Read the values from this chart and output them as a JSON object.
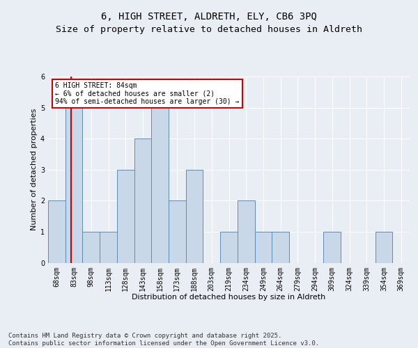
{
  "title_line1": "6, HIGH STREET, ALDRETH, ELY, CB6 3PQ",
  "title_line2": "Size of property relative to detached houses in Aldreth",
  "xlabel": "Distribution of detached houses by size in Aldreth",
  "ylabel": "Number of detached properties",
  "categories": [
    "68sqm",
    "83sqm",
    "98sqm",
    "113sqm",
    "128sqm",
    "143sqm",
    "158sqm",
    "173sqm",
    "188sqm",
    "203sqm",
    "219sqm",
    "234sqm",
    "249sqm",
    "264sqm",
    "279sqm",
    "294sqm",
    "309sqm",
    "324sqm",
    "339sqm",
    "354sqm",
    "369sqm"
  ],
  "values": [
    2,
    5,
    1,
    1,
    3,
    4,
    5,
    2,
    3,
    0,
    1,
    2,
    1,
    1,
    0,
    0,
    1,
    0,
    0,
    1,
    0
  ],
  "bar_color": "#c8d8e8",
  "bar_edge_color": "#5b8db8",
  "red_line_x": 0.85,
  "annotation_text": "6 HIGH STREET: 84sqm\n← 6% of detached houses are smaller (2)\n94% of semi-detached houses are larger (30) →",
  "annotation_box_color": "#ffffff",
  "annotation_box_edge": "#cc0000",
  "ylim": [
    0,
    6
  ],
  "yticks": [
    0,
    1,
    2,
    3,
    4,
    5,
    6
  ],
  "footer": "Contains HM Land Registry data © Crown copyright and database right 2025.\nContains public sector information licensed under the Open Government Licence v3.0.",
  "bg_color": "#e8eef4",
  "plot_bg_color": "#e8eef4",
  "title_fontsize": 10,
  "axis_label_fontsize": 8,
  "tick_fontsize": 7,
  "footer_fontsize": 6.5
}
